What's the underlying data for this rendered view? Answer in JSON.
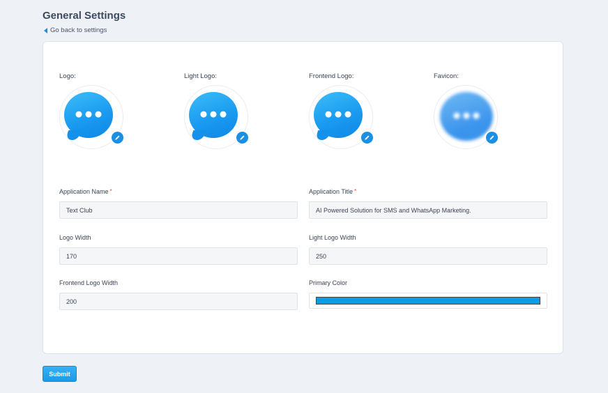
{
  "header": {
    "title": "General Settings",
    "back_link": "Go back to settings"
  },
  "logos": [
    {
      "label": "Logo:",
      "icon": "chat-bubble-icon"
    },
    {
      "label": "Light Logo:",
      "icon": "chat-bubble-icon"
    },
    {
      "label": "Frontend Logo:",
      "icon": "chat-bubble-icon"
    },
    {
      "label": "Favicon:",
      "icon": "chat-bubble-icon"
    }
  ],
  "form": {
    "application_name": {
      "label": "Application Name",
      "required": "*",
      "value": "Text Club"
    },
    "application_title": {
      "label": "Application Title",
      "required": "*",
      "value": "AI Powered Solution for SMS and WhatsApp Marketing."
    },
    "logo_width": {
      "label": "Logo Width",
      "value": "170"
    },
    "light_logo_width": {
      "label": "Light Logo Width",
      "value": "250"
    },
    "frontend_logo_width": {
      "label": "Frontend Logo Width",
      "value": "200"
    },
    "primary_color": {
      "label": "Primary Color",
      "value": "#0e9be6"
    }
  },
  "actions": {
    "submit_label": "Submit"
  },
  "colors": {
    "accent": "#1a8fe3",
    "required": "#e53e3e",
    "background": "#eef1f6"
  }
}
